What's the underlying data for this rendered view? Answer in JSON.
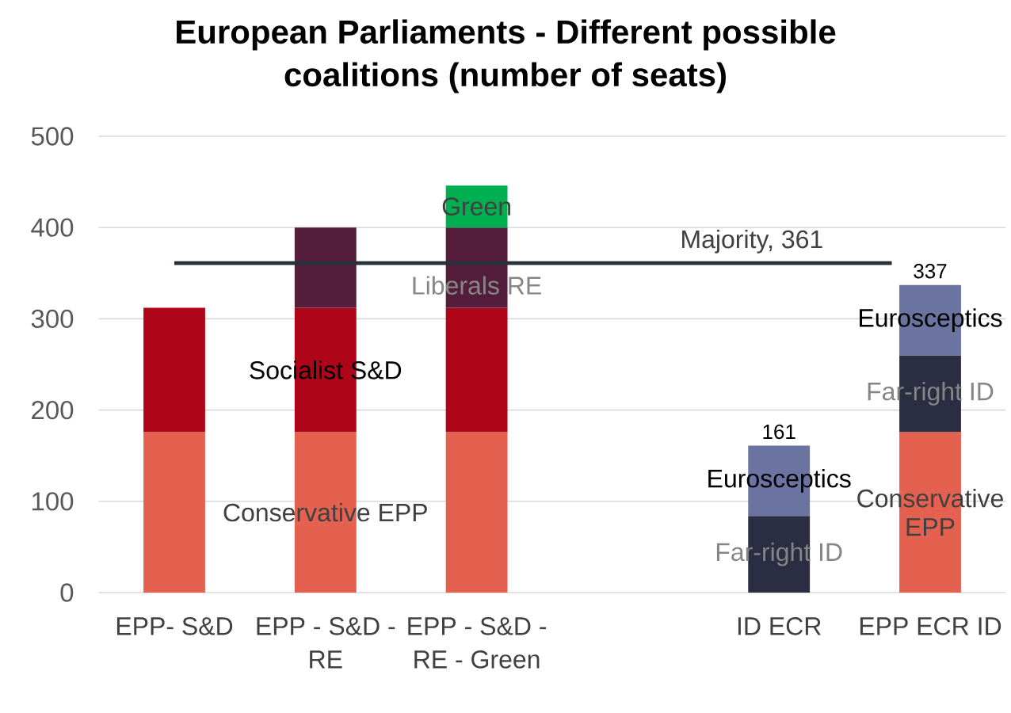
{
  "chart_data": {
    "type": "bar",
    "stacked": true,
    "title": "European Parliaments - Different possible coalitions (number of seats)",
    "categories": [
      "EPP- S&D",
      "EPP - S&D - RE",
      "EPP - S&D - RE - Green",
      null,
      "ID ECR",
      "EPP ECR ID"
    ],
    "series": [
      {
        "color": "#e46150",
        "values": [
          176,
          176,
          176,
          null,
          null,
          176
        ],
        "value_labels": [
          null,
          "Conservative EPP",
          null,
          null,
          null,
          "Conservative EPP"
        ]
      },
      {
        "color": "#ae0618",
        "values": [
          136,
          136,
          136,
          null,
          null,
          null
        ],
        "value_labels": [
          null,
          "Socialist S&D",
          null,
          null,
          null,
          null
        ]
      },
      {
        "color": "#541d3b",
        "values": [
          null,
          88,
          88,
          null,
          null,
          null
        ],
        "value_labels": [
          null,
          null,
          "Liberals RE",
          null,
          null,
          null
        ]
      },
      {
        "color": "#00b050",
        "values": [
          null,
          null,
          46,
          null,
          null,
          null
        ],
        "value_labels": [
          null,
          null,
          "Green",
          null,
          null,
          null
        ]
      },
      {
        "color": "#2b2d42",
        "values": [
          null,
          null,
          null,
          null,
          84,
          84
        ],
        "value_labels": [
          null,
          null,
          null,
          null,
          "Far-right ID",
          "Far-right ID"
        ]
      },
      {
        "color": "#6b74a0",
        "values": [
          null,
          null,
          null,
          null,
          77,
          77
        ],
        "value_labels": [
          null,
          null,
          null,
          null,
          "Eurosceptics",
          "Eurosceptics"
        ]
      }
    ],
    "totals": [
      null,
      null,
      null,
      null,
      "161",
      "337"
    ],
    "ylim": [
      0,
      500
    ],
    "yticks": [
      0,
      100,
      200,
      300,
      400,
      500
    ],
    "grid": "y",
    "ref_lines": [
      {
        "axis": "y",
        "value": 361,
        "label": "Majority, 361",
        "color": "#263238"
      }
    ]
  }
}
